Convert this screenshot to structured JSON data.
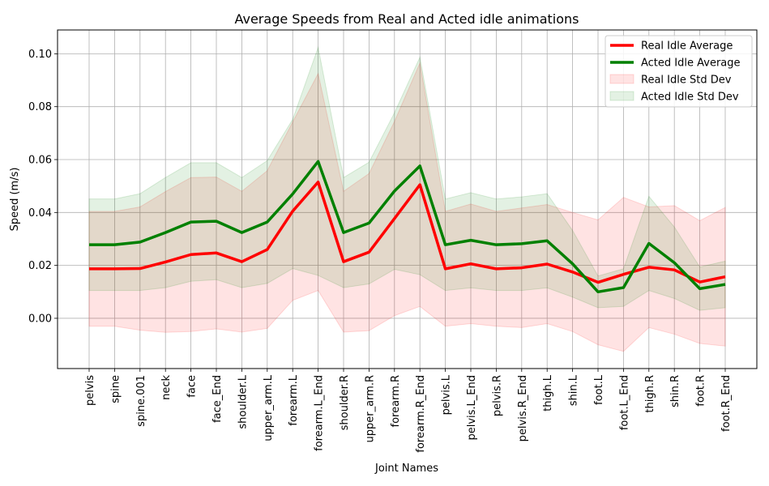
{
  "chart_data": {
    "type": "line",
    "title": "Average Speeds from Real and Acted idle animations",
    "xlabel": "Joint Names",
    "ylabel": "Speed (m/s)",
    "ylim": [
      -0.019,
      0.109
    ],
    "yticks": [
      0.0,
      0.02,
      0.04,
      0.06,
      0.08,
      0.1
    ],
    "ytick_labels": [
      "0.00",
      "0.02",
      "0.04",
      "0.06",
      "0.08",
      "0.10"
    ],
    "grid": true,
    "legend_position": "top-right",
    "categories": [
      "pelvis",
      "spine",
      "spine.001",
      "neck",
      "face",
      "face_End",
      "shoulder.L",
      "upper_arm.L",
      "forearm.L",
      "forearm.L_End",
      "shoulder.R",
      "upper_arm.R",
      "forearm.R",
      "forearm.R_End",
      "pelvis.L",
      "pelvis.L_End",
      "pelvis.R",
      "pelvis.R_End",
      "thigh.L",
      "shin.L",
      "foot.L",
      "foot.L_End",
      "thigh.R",
      "shin.R",
      "foot.R",
      "foot.R_End"
    ],
    "series": [
      {
        "name": "Real Idle Average",
        "kind": "line",
        "color": "#ff0000",
        "values": [
          0.0187,
          0.0187,
          0.0188,
          0.0213,
          0.0241,
          0.0247,
          0.0214,
          0.026,
          0.0405,
          0.0515,
          0.0214,
          0.025,
          0.0377,
          0.0505,
          0.0187,
          0.0206,
          0.0187,
          0.0191,
          0.0205,
          0.0175,
          0.0136,
          0.0166,
          0.0193,
          0.0183,
          0.0137,
          0.0157
        ]
      },
      {
        "name": "Acted Idle Average",
        "kind": "line",
        "color": "#008000",
        "values": [
          0.0278,
          0.0278,
          0.0288,
          0.0324,
          0.0364,
          0.0367,
          0.0324,
          0.0364,
          0.047,
          0.0593,
          0.0324,
          0.036,
          0.0481,
          0.0576,
          0.0278,
          0.0295,
          0.0278,
          0.0282,
          0.0293,
          0.0206,
          0.01,
          0.0116,
          0.0283,
          0.021,
          0.0112,
          0.0128
        ]
      },
      {
        "name": "Real Idle Std Dev",
        "kind": "band",
        "color": "#ff0000",
        "lower": [
          -0.003,
          -0.003,
          -0.0045,
          -0.0053,
          -0.005,
          -0.004,
          -0.0052,
          -0.0038,
          0.0068,
          0.0105,
          -0.0052,
          -0.0047,
          0.001,
          0.0045,
          -0.003,
          -0.002,
          -0.003,
          -0.0035,
          -0.002,
          -0.005,
          -0.01,
          -0.0125,
          -0.0035,
          -0.006,
          -0.0095,
          -0.0105
        ],
        "upper": [
          0.0404,
          0.0404,
          0.0421,
          0.0479,
          0.0532,
          0.0534,
          0.048,
          0.0558,
          0.0742,
          0.0925,
          0.048,
          0.0547,
          0.0744,
          0.0965,
          0.0404,
          0.0432,
          0.0404,
          0.0417,
          0.043,
          0.04,
          0.0372,
          0.0457,
          0.0421,
          0.0426,
          0.0369,
          0.0419
        ]
      },
      {
        "name": "Acted Idle Std Dev",
        "kind": "band",
        "color": "#008000",
        "lower": [
          0.0105,
          0.0105,
          0.0105,
          0.0116,
          0.014,
          0.0146,
          0.0116,
          0.0132,
          0.0188,
          0.0162,
          0.0116,
          0.013,
          0.0185,
          0.0165,
          0.0105,
          0.0115,
          0.0105,
          0.0105,
          0.0115,
          0.008,
          0.004,
          0.0045,
          0.0105,
          0.0075,
          0.003,
          0.004
        ],
        "upper": [
          0.0451,
          0.0451,
          0.0471,
          0.0532,
          0.0588,
          0.0588,
          0.0532,
          0.0596,
          0.0752,
          0.1024,
          0.0532,
          0.059,
          0.0777,
          0.0987,
          0.0451,
          0.0475,
          0.0451,
          0.0459,
          0.0471,
          0.0332,
          0.016,
          0.0187,
          0.0461,
          0.0345,
          0.0194,
          0.0216
        ]
      }
    ]
  }
}
